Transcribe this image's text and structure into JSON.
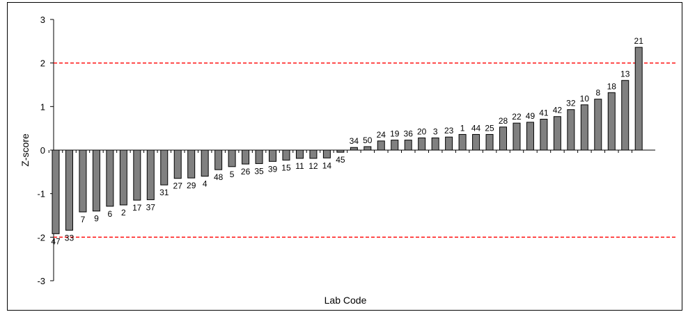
{
  "chart_data": {
    "type": "bar",
    "title": "",
    "xlabel": "Lab Code",
    "ylabel": "Z-score",
    "ylim": [
      -3,
      3
    ],
    "yticks": [
      "-3",
      "-2",
      "-1",
      "0",
      "1",
      "2",
      "3"
    ],
    "reference_lines": [
      {
        "y": 2,
        "color": "#ff0000",
        "style": "dashed"
      },
      {
        "y": -2,
        "color": "#ff0000",
        "style": "dashed"
      }
    ],
    "bar_color": "#808080",
    "categories": [
      "47",
      "33",
      "7",
      "9",
      "6",
      "2",
      "17",
      "37",
      "31",
      "27",
      "29",
      "4",
      "48",
      "5",
      "26",
      "35",
      "39",
      "15",
      "11",
      "12",
      "14",
      "45",
      "34",
      "50",
      "24",
      "19",
      "36",
      "20",
      "3",
      "23",
      "1",
      "44",
      "25",
      "28",
      "22",
      "49",
      "41",
      "42",
      "32",
      "10",
      "8",
      "18",
      "13",
      "21"
    ],
    "values": [
      -1.92,
      -1.84,
      -1.42,
      -1.4,
      -1.29,
      -1.26,
      -1.15,
      -1.14,
      -0.8,
      -0.65,
      -0.64,
      -0.6,
      -0.45,
      -0.38,
      -0.32,
      -0.31,
      -0.26,
      -0.23,
      -0.19,
      -0.19,
      -0.18,
      -0.05,
      0.06,
      0.08,
      0.21,
      0.23,
      0.23,
      0.28,
      0.28,
      0.3,
      0.36,
      0.36,
      0.36,
      0.53,
      0.62,
      0.64,
      0.71,
      0.77,
      0.93,
      1.04,
      1.17,
      1.32,
      1.6,
      2.36
    ],
    "grid": false,
    "legend": "none"
  }
}
